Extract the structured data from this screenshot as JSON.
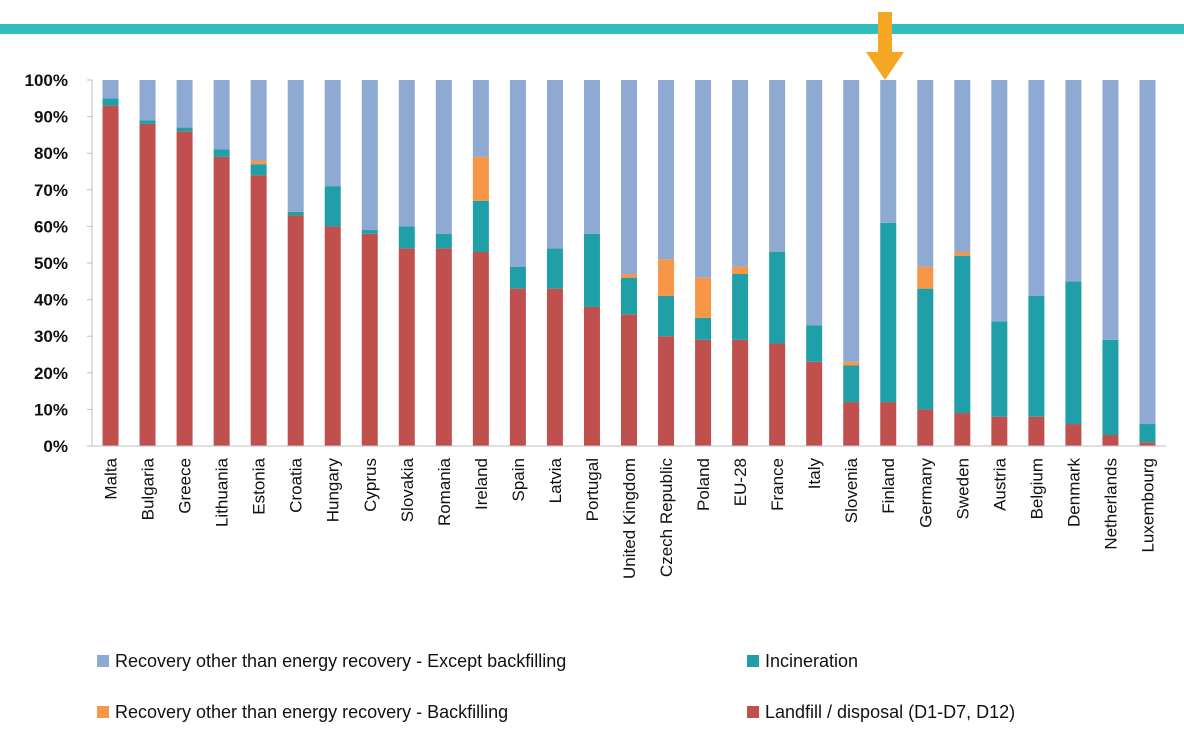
{
  "colors": {
    "header_bar": "#2FBFBF",
    "marker_arrow": "#F5A623",
    "landfill": "#C0504D",
    "incineration": "#1F9FA8",
    "backfilling": "#F79646",
    "recovery_except": "#8EAAD2",
    "axis": "#BFBFBF"
  },
  "marker": {
    "icon": "down-arrow-icon",
    "category": "Finland"
  },
  "chart_data": {
    "type": "bar",
    "stacked": true,
    "percent": true,
    "ylim": [
      0,
      100
    ],
    "yticks": [
      "0%",
      "10%",
      "20%",
      "30%",
      "40%",
      "50%",
      "60%",
      "70%",
      "80%",
      "90%",
      "100%"
    ],
    "grid": false,
    "legend_position": "bottom",
    "categories": [
      "Malta",
      "Bulgaria",
      "Greece",
      "Lithuania",
      "Estonia",
      "Croatia",
      "Hungary",
      "Cyprus",
      "Slovakia",
      "Romania",
      "Ireland",
      "Spain",
      "Latvia",
      "Portugal",
      "United Kingdom",
      "Czech Republic",
      "Poland",
      "EU-28",
      "France",
      "Italy",
      "Slovenia",
      "Finland",
      "Germany",
      "Sweden",
      "Austria",
      "Belgium",
      "Denmark",
      "Netherlands",
      "Luxembourg"
    ],
    "series": [
      {
        "name": "Landfill / disposal (D1-D7, D12)",
        "color": "#C0504D",
        "values": [
          93,
          88,
          86,
          79,
          74,
          63,
          60,
          58,
          54,
          54,
          53,
          43,
          43,
          38,
          36,
          30,
          29,
          29,
          28,
          23,
          12,
          12,
          10,
          9,
          8,
          8,
          6,
          3,
          1
        ]
      },
      {
        "name": "Incineration",
        "color": "#1F9FA8",
        "values": [
          2,
          1,
          1,
          2,
          3,
          1,
          11,
          1,
          6,
          4,
          14,
          6,
          11,
          20,
          10,
          11,
          6,
          18,
          25,
          10,
          10,
          49,
          33,
          43,
          26,
          33,
          39,
          26,
          5
        ]
      },
      {
        "name": "Recovery other than energy recovery - Backfilling",
        "color": "#F79646",
        "values": [
          0,
          0,
          0,
          0,
          1,
          0,
          0,
          0,
          0,
          0,
          12,
          0,
          0,
          0,
          1,
          10,
          11,
          2,
          0,
          0,
          1,
          0,
          6,
          1,
          0,
          0,
          0,
          0,
          0
        ]
      },
      {
        "name": "Recovery other than energy recovery - Except backfilling",
        "color": "#8EAAD2",
        "values": [
          5,
          11,
          13,
          19,
          22,
          36,
          29,
          41,
          40,
          42,
          21,
          51,
          46,
          42,
          53,
          49,
          54,
          51,
          47,
          67,
          77,
          39,
          51,
          47,
          66,
          59,
          55,
          71,
          94
        ]
      }
    ]
  },
  "legend": {
    "items": [
      {
        "label": "Recovery other than energy recovery - Except backfilling",
        "color": "#8EAAD2"
      },
      {
        "label": "Incineration",
        "color": "#1F9FA8"
      },
      {
        "label": "Recovery other than energy recovery - Backfilling",
        "color": "#F79646"
      },
      {
        "label": "Landfill / disposal (D1-D7, D12)",
        "color": "#C0504D"
      }
    ]
  }
}
